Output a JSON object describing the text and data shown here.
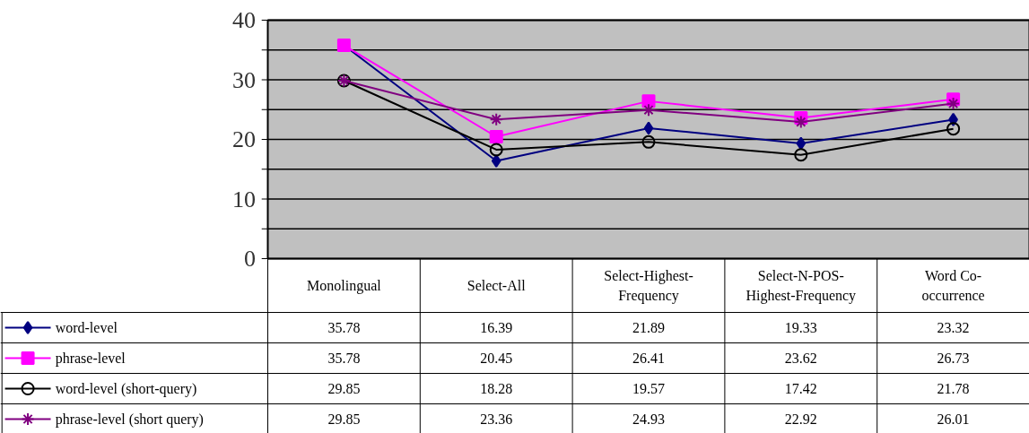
{
  "chart_data": {
    "type": "line",
    "categories": [
      "Monolingual",
      "Select-All",
      "Select-Highest-\nFrequency",
      "Select-N-POS-\nHighest-Frequency",
      "Word Co-\noccurrence"
    ],
    "series": [
      {
        "name": "word-level",
        "color": "#000080",
        "marker": "diamond",
        "values": [
          35.78,
          16.39,
          21.89,
          19.33,
          23.32
        ]
      },
      {
        "name": "phrase-level",
        "color": "#ff00ff",
        "marker": "square",
        "values": [
          35.78,
          20.45,
          26.41,
          23.62,
          26.73
        ]
      },
      {
        "name": "word-level (short-query)",
        "color": "#000000",
        "marker": "circle",
        "values": [
          29.85,
          18.28,
          19.57,
          17.42,
          21.78
        ]
      },
      {
        "name": "phrase-level (short query)",
        "color": "#800080",
        "marker": "cross",
        "values": [
          29.85,
          23.36,
          24.93,
          22.92,
          26.01
        ]
      }
    ],
    "ylim": [
      0,
      40
    ],
    "yticks": [
      0,
      {
        "value": 5,
        "label": null
      },
      10,
      {
        "value": 15,
        "label": null
      },
      20,
      {
        "value": 25,
        "label": null
      },
      30,
      {
        "value": 35,
        "label": null
      },
      40
    ],
    "grid": "y",
    "legend": "bottom",
    "data_labels": true
  }
}
